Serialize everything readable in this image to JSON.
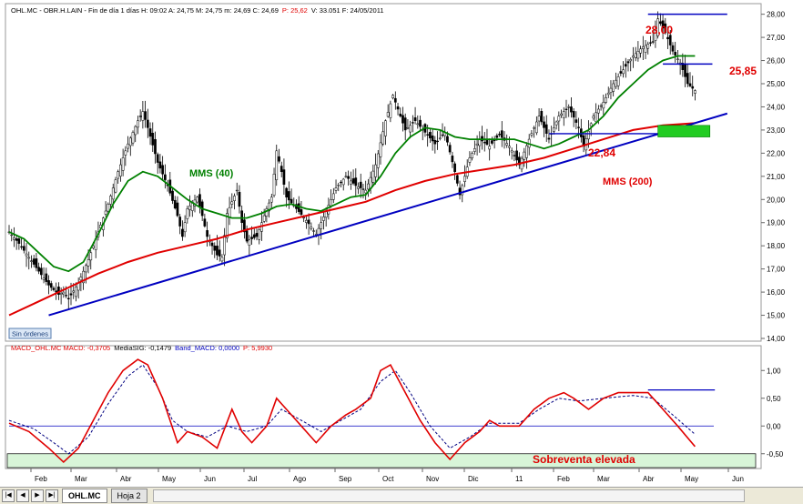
{
  "header": {
    "text": "OHL.MC - OBR.H.LAIN - Fin de día 1 días  H: 09:02  A: 24,75  M: 24,75  m: 24,69  C: 24,69",
    "p_text": "P: 25,62",
    "tail_text": "V: 33.051  F: 24/05/2011"
  },
  "status_badge": "Sin órdenes",
  "macd_header": {
    "macd_label": "MACD_OHL.MC  MACD: -0,3705",
    "sig_label": "MediaSIG: -0,1479",
    "band_label": "Band_MACD: 0,0000",
    "p_label": "P: 5,9930"
  },
  "tabs": {
    "active": "OHL.MC",
    "inactive": "Hoja 2"
  },
  "colors": {
    "price_candle": "#000000",
    "mms40": "#008000",
    "mms200": "#e00000",
    "trendline": "#0000c0",
    "resistance_lines": "#0000c0",
    "macd": "#e00000",
    "signal": "#000080",
    "oversold_band": "#d8f5d8",
    "annotation_red": "#e00000"
  },
  "chart_data": [
    {
      "type": "candlestick",
      "title": "",
      "ylim": [
        14.0,
        28.3
      ],
      "y_ticks": [
        "28,00",
        "27,00",
        "26,00",
        "25,00",
        "24,00",
        "23,00",
        "22,00",
        "21,00",
        "20,00",
        "19,00",
        "18,00",
        "17,00",
        "16,00",
        "15,00",
        "14,00"
      ],
      "x_ticks": [
        "Feb",
        "Mar",
        "Abr",
        "May",
        "Jun",
        "Jul",
        "Ago",
        "Sep",
        "Oct",
        "Nov",
        "Dic",
        "11",
        "Feb",
        "Mar",
        "Abr",
        "May",
        "Jun"
      ],
      "grid": false,
      "close_path": [
        [
          0,
          18.6
        ],
        [
          4,
          18.1
        ],
        [
          8,
          17.5
        ],
        [
          12,
          16.9
        ],
        [
          16,
          16.3
        ],
        [
          20,
          15.9
        ],
        [
          22,
          16.0
        ],
        [
          24,
          15.7
        ],
        [
          28,
          16.4
        ],
        [
          32,
          17.4
        ],
        [
          36,
          18.6
        ],
        [
          40,
          19.8
        ],
        [
          44,
          21.2
        ],
        [
          48,
          22.4
        ],
        [
          52,
          23.4
        ],
        [
          54,
          23.8
        ],
        [
          56,
          23.1
        ],
        [
          60,
          21.6
        ],
        [
          64,
          20.6
        ],
        [
          68,
          19.3
        ],
        [
          70,
          18.4
        ],
        [
          72,
          19.6
        ],
        [
          76,
          20.1
        ],
        [
          78,
          19.3
        ],
        [
          80,
          18.4
        ],
        [
          84,
          17.6
        ],
        [
          86,
          17.5
        ],
        [
          88,
          19.4
        ],
        [
          92,
          20.4
        ],
        [
          94,
          19.0
        ],
        [
          96,
          18.2
        ],
        [
          100,
          18.4
        ],
        [
          104,
          19.6
        ],
        [
          106,
          20.1
        ],
        [
          108,
          22.1
        ],
        [
          110,
          21.2
        ],
        [
          112,
          20.1
        ],
        [
          116,
          19.6
        ],
        [
          120,
          19.1
        ],
        [
          124,
          18.5
        ],
        [
          128,
          19.5
        ],
        [
          132,
          20.5
        ],
        [
          136,
          21.0
        ],
        [
          140,
          20.6
        ],
        [
          144,
          20.4
        ],
        [
          148,
          21.5
        ],
        [
          152,
          23.4
        ],
        [
          155,
          24.5
        ],
        [
          158,
          23.6
        ],
        [
          160,
          23.0
        ],
        [
          164,
          23.4
        ],
        [
          168,
          22.9
        ],
        [
          172,
          22.4
        ],
        [
          176,
          22.9
        ],
        [
          180,
          21.2
        ],
        [
          182,
          20.2
        ],
        [
          186,
          21.8
        ],
        [
          190,
          22.6
        ],
        [
          194,
          22.3
        ],
        [
          198,
          22.8
        ],
        [
          202,
          22.3
        ],
        [
          206,
          21.5
        ],
        [
          210,
          22.6
        ],
        [
          214,
          23.6
        ],
        [
          218,
          22.6
        ],
        [
          222,
          23.6
        ],
        [
          226,
          24.0
        ],
        [
          230,
          23.1
        ],
        [
          232,
          22.3
        ],
        [
          236,
          23.6
        ],
        [
          240,
          24.2
        ],
        [
          244,
          25.0
        ],
        [
          248,
          25.6
        ],
        [
          252,
          26.2
        ],
        [
          256,
          26.6
        ],
        [
          260,
          26.8
        ],
        [
          262,
          27.8
        ],
        [
          265,
          27.2
        ],
        [
          268,
          26.4
        ],
        [
          271,
          25.9
        ],
        [
          274,
          25.0
        ],
        [
          277,
          24.7
        ]
      ],
      "mms40_path": [
        [
          0,
          18.6
        ],
        [
          6,
          18.3
        ],
        [
          12,
          17.7
        ],
        [
          18,
          17.1
        ],
        [
          24,
          16.9
        ],
        [
          30,
          17.3
        ],
        [
          36,
          18.5
        ],
        [
          42,
          19.8
        ],
        [
          48,
          20.8
        ],
        [
          54,
          21.2
        ],
        [
          60,
          21.0
        ],
        [
          66,
          20.5
        ],
        [
          72,
          20.0
        ],
        [
          78,
          19.6
        ],
        [
          84,
          19.4
        ],
        [
          90,
          19.2
        ],
        [
          96,
          19.2
        ],
        [
          102,
          19.4
        ],
        [
          108,
          19.7
        ],
        [
          114,
          19.8
        ],
        [
          120,
          19.6
        ],
        [
          126,
          19.5
        ],
        [
          132,
          19.8
        ],
        [
          138,
          20.1
        ],
        [
          144,
          20.2
        ],
        [
          150,
          21.0
        ],
        [
          156,
          22.0
        ],
        [
          162,
          22.7
        ],
        [
          168,
          23.1
        ],
        [
          174,
          23.0
        ],
        [
          180,
          22.7
        ],
        [
          186,
          22.6
        ],
        [
          192,
          22.6
        ],
        [
          198,
          22.6
        ],
        [
          204,
          22.6
        ],
        [
          210,
          22.4
        ],
        [
          216,
          22.2
        ],
        [
          222,
          22.4
        ],
        [
          228,
          22.7
        ],
        [
          234,
          23.0
        ],
        [
          240,
          23.6
        ],
        [
          246,
          24.4
        ],
        [
          252,
          25.0
        ],
        [
          258,
          25.6
        ],
        [
          264,
          26.0
        ],
        [
          270,
          26.2
        ],
        [
          277,
          26.2
        ]
      ],
      "mms200_path": [
        [
          0,
          15.0
        ],
        [
          12,
          15.6
        ],
        [
          24,
          16.2
        ],
        [
          36,
          16.8
        ],
        [
          48,
          17.3
        ],
        [
          60,
          17.7
        ],
        [
          72,
          18.0
        ],
        [
          84,
          18.3
        ],
        [
          96,
          18.7
        ],
        [
          108,
          19.0
        ],
        [
          120,
          19.3
        ],
        [
          132,
          19.6
        ],
        [
          144,
          19.9
        ],
        [
          156,
          20.4
        ],
        [
          168,
          20.8
        ],
        [
          180,
          21.1
        ],
        [
          192,
          21.3
        ],
        [
          204,
          21.5
        ],
        [
          216,
          21.8
        ],
        [
          228,
          22.2
        ],
        [
          240,
          22.6
        ],
        [
          252,
          23.0
        ],
        [
          264,
          23.2
        ],
        [
          277,
          23.3
        ]
      ],
      "trendline": [
        [
          16,
          15.0
        ],
        [
          277,
          23.3
        ]
      ],
      "horizontal_levels": [
        {
          "label": "28,00",
          "value": 28.0
        },
        {
          "label": "25,85",
          "value": 25.85
        },
        {
          "label": "22,84",
          "value": 22.84
        }
      ],
      "annotations": [
        "MMS (40)",
        "MMS (200)"
      ]
    },
    {
      "type": "line",
      "title": "",
      "ylim": [
        -0.75,
        1.25
      ],
      "y_ticks": [
        "1,00",
        "0,50",
        "0,00",
        "-0,50"
      ],
      "x_ticks": [
        "Feb",
        "Mar",
        "Abr",
        "May",
        "Jun",
        "Jul",
        "Ago",
        "Sep",
        "Oct",
        "Nov",
        "Dic",
        "11",
        "Feb",
        "Mar",
        "Abr",
        "May",
        "Jun"
      ],
      "series": [
        {
          "name": "MACD",
          "values": [
            [
              0,
              0.05
            ],
            [
              8,
              -0.1
            ],
            [
              16,
              -0.4
            ],
            [
              22,
              -0.65
            ],
            [
              28,
              -0.4
            ],
            [
              34,
              0.1
            ],
            [
              40,
              0.6
            ],
            [
              46,
              1.0
            ],
            [
              52,
              1.2
            ],
            [
              56,
              1.1
            ],
            [
              62,
              0.5
            ],
            [
              68,
              -0.3
            ],
            [
              72,
              -0.1
            ],
            [
              78,
              -0.2
            ],
            [
              84,
              -0.4
            ],
            [
              90,
              0.3
            ],
            [
              94,
              -0.1
            ],
            [
              98,
              -0.3
            ],
            [
              104,
              0.0
            ],
            [
              108,
              0.5
            ],
            [
              112,
              0.3
            ],
            [
              118,
              0.0
            ],
            [
              124,
              -0.3
            ],
            [
              130,
              0.0
            ],
            [
              136,
              0.2
            ],
            [
              140,
              0.3
            ],
            [
              146,
              0.5
            ],
            [
              150,
              1.0
            ],
            [
              154,
              1.1
            ],
            [
              160,
              0.6
            ],
            [
              166,
              0.1
            ],
            [
              172,
              -0.3
            ],
            [
              178,
              -0.6
            ],
            [
              184,
              -0.3
            ],
            [
              190,
              -0.1
            ],
            [
              194,
              0.1
            ],
            [
              198,
              0.0
            ],
            [
              206,
              0.0
            ],
            [
              212,
              0.3
            ],
            [
              218,
              0.5
            ],
            [
              224,
              0.6
            ],
            [
              228,
              0.5
            ],
            [
              234,
              0.3
            ],
            [
              240,
              0.5
            ],
            [
              246,
              0.6
            ],
            [
              252,
              0.6
            ],
            [
              258,
              0.6
            ],
            [
              264,
              0.3
            ],
            [
              270,
              0.0
            ],
            [
              277,
              -0.37
            ]
          ]
        },
        {
          "name": "MediaSIG",
          "values": [
            [
              0,
              0.1
            ],
            [
              10,
              -0.05
            ],
            [
              18,
              -0.3
            ],
            [
              24,
              -0.5
            ],
            [
              32,
              -0.2
            ],
            [
              40,
              0.4
            ],
            [
              48,
              0.9
            ],
            [
              54,
              1.1
            ],
            [
              60,
              0.7
            ],
            [
              66,
              0.1
            ],
            [
              72,
              -0.1
            ],
            [
              80,
              -0.2
            ],
            [
              88,
              0.0
            ],
            [
              96,
              -0.1
            ],
            [
              104,
              0.0
            ],
            [
              110,
              0.3
            ],
            [
              118,
              0.1
            ],
            [
              126,
              -0.1
            ],
            [
              134,
              0.1
            ],
            [
              142,
              0.3
            ],
            [
              150,
              0.8
            ],
            [
              156,
              1.0
            ],
            [
              162,
              0.6
            ],
            [
              170,
              0.0
            ],
            [
              178,
              -0.4
            ],
            [
              186,
              -0.2
            ],
            [
              194,
              0.05
            ],
            [
              206,
              0.05
            ],
            [
              214,
              0.3
            ],
            [
              222,
              0.5
            ],
            [
              230,
              0.45
            ],
            [
              240,
              0.5
            ],
            [
              252,
              0.55
            ],
            [
              260,
              0.5
            ],
            [
              268,
              0.2
            ],
            [
              277,
              -0.15
            ]
          ]
        }
      ],
      "zero_line": 0.0,
      "overbought_level": 0.65,
      "oversold_band": [
        -0.75,
        -0.5
      ],
      "annotations": [
        "Sobreventa elevada"
      ]
    }
  ],
  "labels": {
    "level_28": "28,00",
    "level_2585": "25,85",
    "level_2284": "22,84",
    "mms40": "MMS (40)",
    "mms200": "MMS (200)",
    "oversold": "Sobreventa elevada"
  }
}
